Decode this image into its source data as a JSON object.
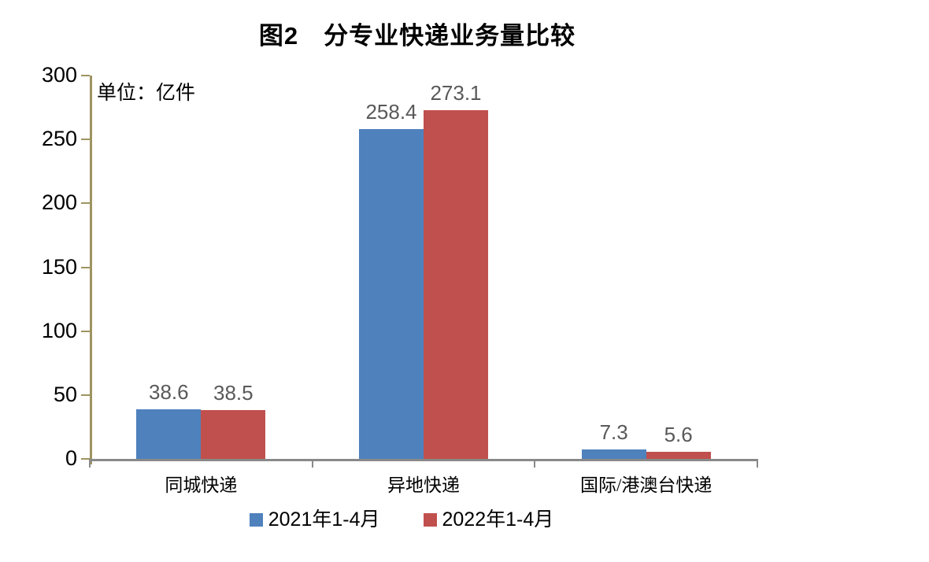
{
  "title": "图2　分专业快递业务量比较",
  "unit_label": "单位：亿件",
  "colors": {
    "background": "#ffffff",
    "series_2021": "#4F81BD",
    "series_2022": "#C0504D",
    "y_axis": "#9E9460",
    "x_axis": "#898989",
    "value_label": "#595959",
    "text": "#000000"
  },
  "chart_data": {
    "type": "bar",
    "title": "图2　分专业快递业务量比较",
    "unit": "单位：亿件",
    "categories": [
      "同城快递",
      "异地快递",
      "国际/港澳台快递"
    ],
    "series": [
      {
        "name": "2021年1-4月",
        "color": "#4F81BD",
        "values": [
          38.6,
          258.4,
          7.3
        ]
      },
      {
        "name": "2022年1-4月",
        "color": "#C0504D",
        "values": [
          38.5,
          273.1,
          5.6
        ]
      }
    ],
    "ylim": [
      0,
      300
    ],
    "yticks": [
      0,
      50,
      100,
      150,
      200,
      250,
      300
    ],
    "xlabel": "",
    "ylabel": "",
    "grid": false,
    "legend_position": "bottom",
    "value_labels_shown": true
  }
}
